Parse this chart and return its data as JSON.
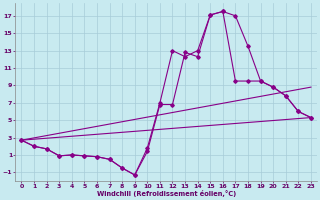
{
  "xlabel": "Windchill (Refroidissement éolien,°C)",
  "background_color": "#c8eaf0",
  "grid_color": "#a8ccd8",
  "line_color": "#880088",
  "xlim": [
    -0.5,
    23.5
  ],
  "ylim": [
    -2.0,
    18.5
  ],
  "xticks": [
    0,
    1,
    2,
    3,
    4,
    5,
    6,
    7,
    8,
    9,
    10,
    11,
    12,
    13,
    14,
    15,
    16,
    17,
    18,
    19,
    20,
    21,
    22,
    23
  ],
  "yticks": [
    -1,
    1,
    3,
    5,
    7,
    9,
    11,
    13,
    15,
    17
  ],
  "line1_x": [
    0,
    1,
    2,
    3,
    4,
    5,
    6,
    7,
    8,
    9,
    10,
    11,
    12,
    13,
    14,
    15,
    16,
    17,
    18,
    19,
    20,
    21,
    22,
    23
  ],
  "line1_y": [
    2.7,
    2.0,
    1.7,
    0.9,
    1.0,
    0.9,
    0.8,
    0.5,
    -0.5,
    -1.3,
    1.4,
    6.8,
    6.8,
    12.8,
    12.3,
    17.1,
    17.5,
    17.0,
    13.5,
    9.5,
    8.8,
    7.8,
    6.0,
    5.3
  ],
  "line2_x": [
    0,
    1,
    2,
    3,
    4,
    5,
    6,
    7,
    8,
    9,
    10,
    11,
    12,
    13,
    14,
    15,
    16,
    17,
    18,
    19,
    20,
    21,
    22,
    23
  ],
  "line2_y": [
    2.7,
    2.0,
    1.7,
    0.9,
    1.0,
    0.9,
    0.8,
    0.5,
    -0.5,
    -1.3,
    1.8,
    7.0,
    13.0,
    12.3,
    13.0,
    17.1,
    17.5,
    9.5,
    9.5,
    9.5,
    8.8,
    7.8,
    6.0,
    5.3
  ],
  "line3_x": [
    0,
    23
  ],
  "line3_y": [
    2.7,
    5.3
  ],
  "line4_x": [
    0,
    23
  ],
  "line4_y": [
    2.7,
    8.8
  ]
}
